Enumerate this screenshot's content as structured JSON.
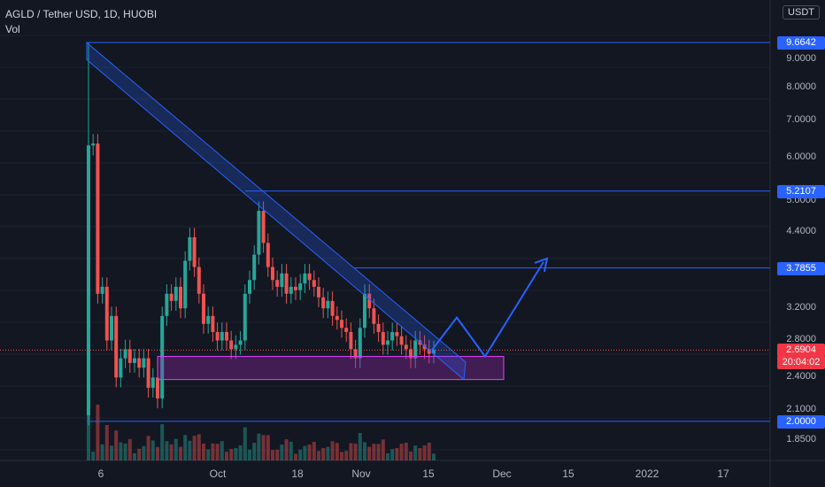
{
  "legend": {
    "title": "AGLD / Tether USD, 1D, HUOBI",
    "volume_label": "Vol"
  },
  "unit": "USDT",
  "price_tags": {
    "tag_9": "9.6642",
    "tag_5": "5.2107",
    "tag_3": "3.7855",
    "tag_last": "2.6904",
    "countdown": "20:04:02",
    "tag_2": "2.0000"
  },
  "colors": {
    "up": "#26a69a",
    "down": "#ef5350",
    "line": "#2962ff",
    "zone": "#9c27b0",
    "background": "#131722"
  },
  "chart_data": {
    "type": "candlestick",
    "symbol": "AGLD / Tether USD",
    "interval": "1D",
    "exchange": "HUOBI",
    "y_scale": "log",
    "ylim": [
      1.7,
      11.2
    ],
    "y_ticks": [
      "9.0000",
      "8.0000",
      "7.0000",
      "6.0000",
      "5.0000",
      "4.4000",
      "3.7855",
      "3.2000",
      "2.8000",
      "2.4000",
      "2.1000",
      "1.8500"
    ],
    "x_ticks": [
      "6",
      "Oct",
      "18",
      "Nov",
      "15",
      "Dec",
      "15",
      "2022",
      "17"
    ],
    "last_price": 2.6904,
    "horizontal_levels": [
      9.6642,
      5.2107,
      3.7855,
      2.0
    ],
    "support_zone": [
      2.38,
      2.62
    ],
    "projection_target": 3.88,
    "candle_closes": [
      6.3,
      6.35,
      3.4,
      3.5,
      2.8,
      3.1,
      2.4,
      2.6,
      2.7,
      2.55,
      2.6,
      2.5,
      2.6,
      2.3,
      2.4,
      2.2,
      3.1,
      3.4,
      3.3,
      3.5,
      3.2,
      3.9,
      4.3,
      3.8,
      3.4,
      3.0,
      3.1,
      2.9,
      2.8,
      2.9,
      2.8,
      2.7,
      2.75,
      2.8,
      3.4,
      3.6,
      4.0,
      4.8,
      4.2,
      3.8,
      3.6,
      3.5,
      3.7,
      3.4,
      3.5,
      3.45,
      3.55,
      3.7,
      3.6,
      3.5,
      3.35,
      3.2,
      3.3,
      3.1,
      3.05,
      2.95,
      2.9,
      2.7,
      2.6,
      2.95,
      3.4,
      3.2,
      3.0,
      2.9,
      2.75,
      2.8,
      2.9,
      2.85,
      2.75,
      2.7,
      2.6,
      2.8,
      2.75,
      2.7,
      2.65,
      2.69
    ]
  }
}
